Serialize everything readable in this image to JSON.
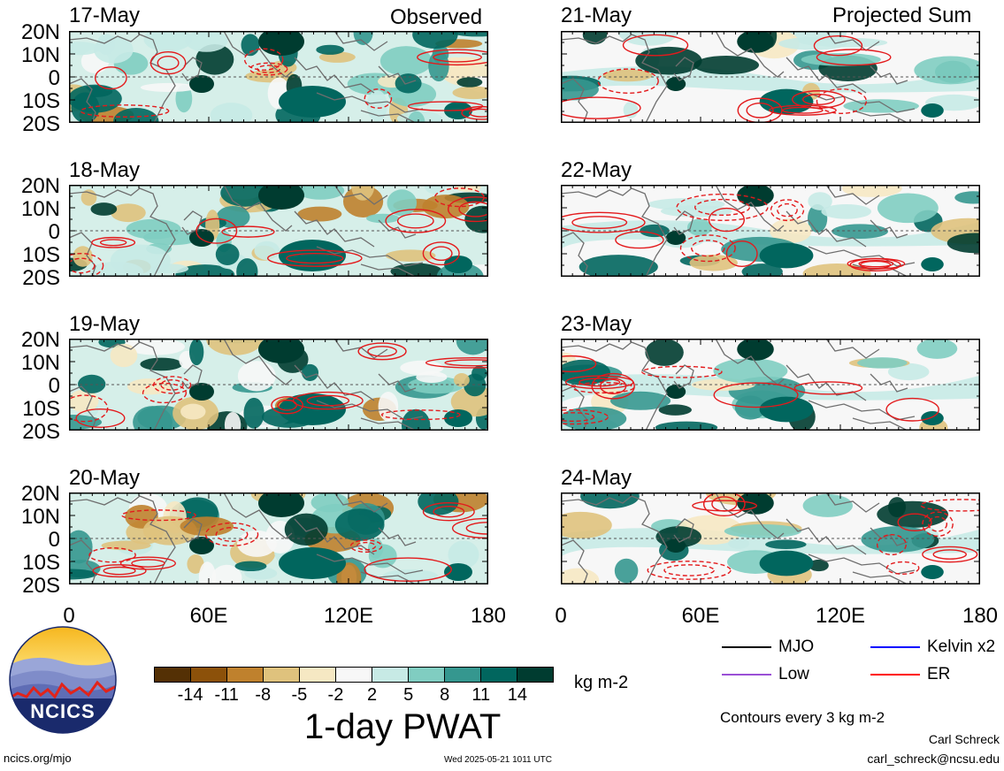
{
  "panels": [
    {
      "date": "17-May",
      "label": "Observed"
    },
    {
      "date": "21-May",
      "label": "Projected Sum"
    },
    {
      "date": "18-May",
      "label": ""
    },
    {
      "date": "22-May",
      "label": ""
    },
    {
      "date": "19-May",
      "label": ""
    },
    {
      "date": "23-May",
      "label": ""
    },
    {
      "date": "20-May",
      "label": ""
    },
    {
      "date": "24-May",
      "label": ""
    }
  ],
  "lat_labels": [
    "20N",
    "10N",
    "0",
    "10S",
    "20S"
  ],
  "lon_labels": [
    "0",
    "60E",
    "120E",
    "180"
  ],
  "colorbar": {
    "ticks": [
      "-14",
      "-11",
      "-8",
      "-5",
      "-2",
      "2",
      "5",
      "8",
      "11",
      "14"
    ],
    "colors": [
      "#543005",
      "#8c510a",
      "#bf812d",
      "#dfc27d",
      "#f6e8c3",
      "#f7f7f7",
      "#c7eae5",
      "#80cdc1",
      "#35978f",
      "#01665e",
      "#003c30"
    ],
    "units": "kg m-2",
    "title": "1-day PWAT"
  },
  "legend": {
    "items": [
      {
        "label": "MJO",
        "color": "#000000"
      },
      {
        "label": "Kelvin x2",
        "color": "#0000ff"
      },
      {
        "label": "Low",
        "color": "#9a4fd6"
      },
      {
        "label": "ER",
        "color": "#ff0000"
      }
    ],
    "contours_note": "Contours every 3 kg m-2"
  },
  "footer": {
    "logo_text": "NCICS",
    "site": "ncics.org/mjo",
    "timestamp": "Wed 2025-05-21 1011 UTC",
    "author": "Carl Schreck",
    "email": "carl_schreck@ncsu.edu"
  }
}
